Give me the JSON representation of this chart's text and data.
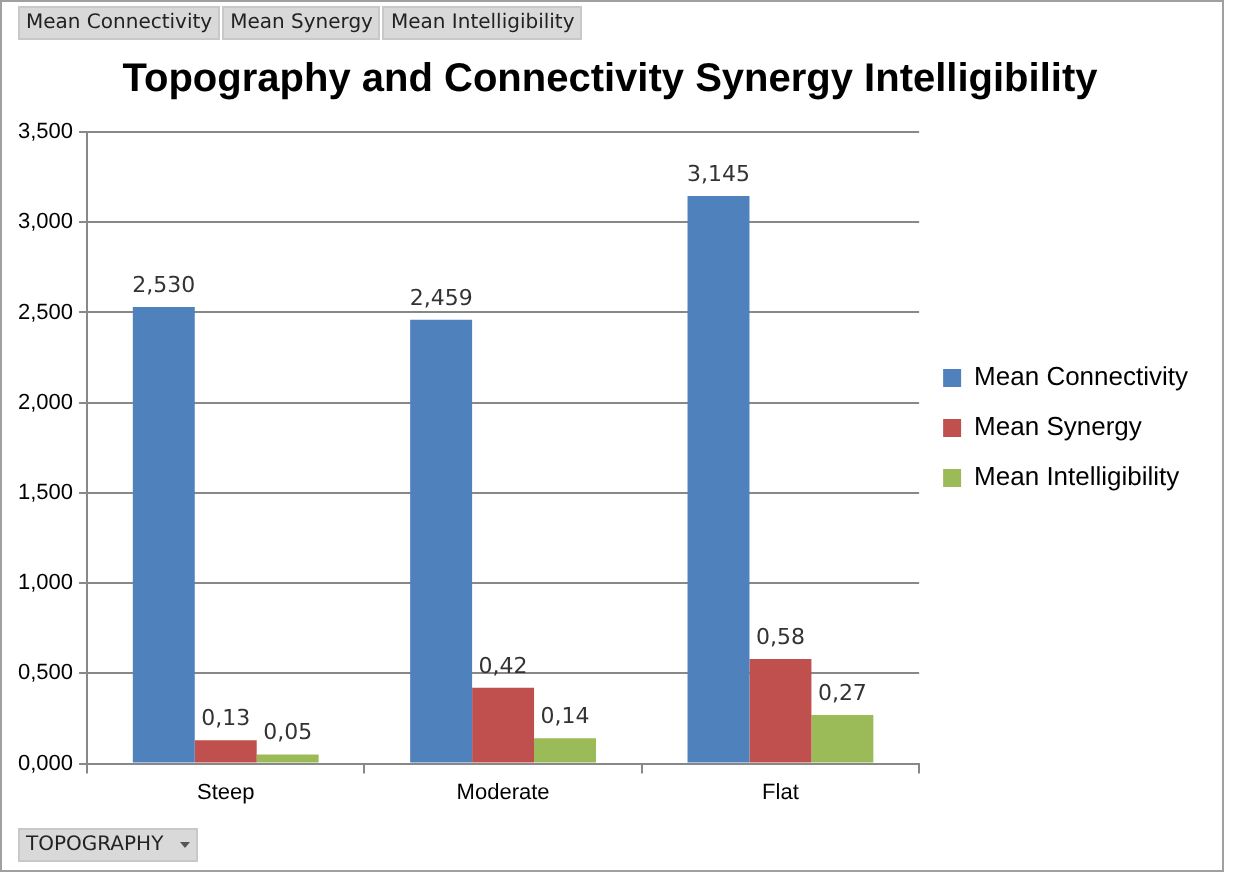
{
  "chart_data": {
    "type": "bar",
    "title": "Topography and Connectivity Synergy Intelligibility",
    "categories": [
      "Steep",
      "Moderate",
      "Flat"
    ],
    "series": [
      {
        "name": "Mean Connectivity",
        "color": "#4f81bd",
        "values": [
          2.53,
          2.459,
          3.145
        ],
        "value_labels": [
          "2,530",
          "2,459",
          "3,145"
        ]
      },
      {
        "name": "Mean Synergy",
        "color": "#c0504d",
        "values": [
          0.13,
          0.42,
          0.58
        ],
        "value_labels": [
          "0,13",
          "0,42",
          "0,58"
        ]
      },
      {
        "name": "Mean Intelligibility",
        "color": "#9bbb59",
        "values": [
          0.05,
          0.14,
          0.27
        ],
        "value_labels": [
          "0,05",
          "0,14",
          "0,27"
        ]
      }
    ],
    "ylim": [
      0,
      3.5
    ],
    "yticks": [
      {
        "value": 0,
        "label": "0,000"
      },
      {
        "value": 0.5,
        "label": "0,500"
      },
      {
        "value": 1,
        "label": "1,000"
      },
      {
        "value": 1.5,
        "label": "1,500"
      },
      {
        "value": 2,
        "label": "2,000"
      },
      {
        "value": 2.5,
        "label": "2,500"
      },
      {
        "value": 3,
        "label": "3,000"
      },
      {
        "value": 3.5,
        "label": "3,500"
      }
    ],
    "grid": "y",
    "legend": "right",
    "annotations": [
      "Mean Connectivity",
      "Mean Synergy",
      "Mean Intelligibility",
      "TOPOGRAPHY"
    ]
  }
}
